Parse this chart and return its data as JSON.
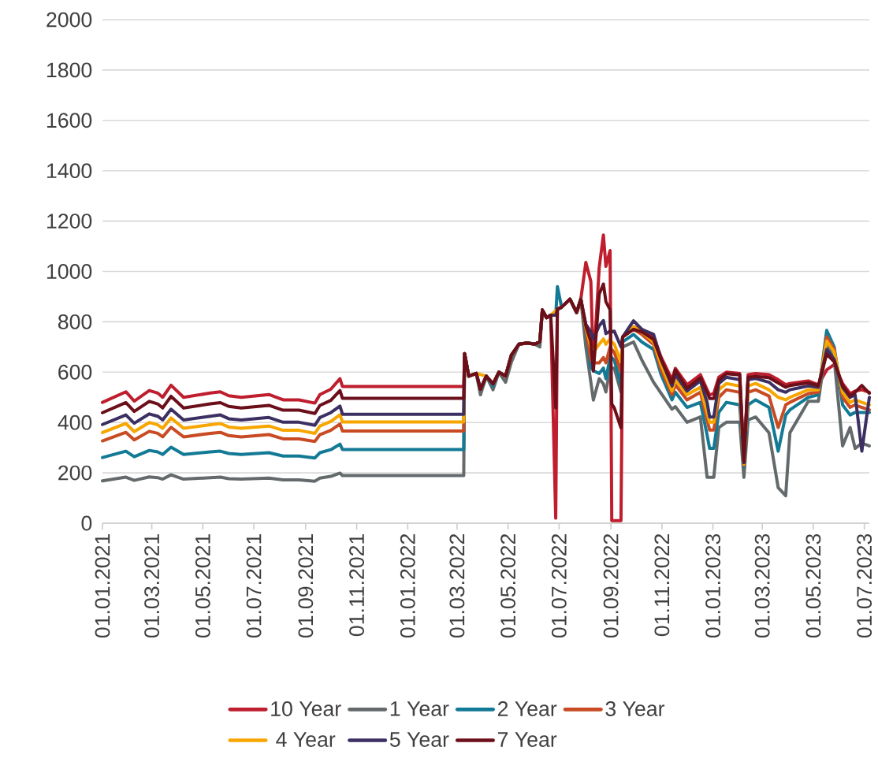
{
  "chart_data": {
    "type": "line",
    "x": [
      "2021-01-01",
      "2021-01-29",
      "2021-02-08",
      "2021-02-26",
      "2021-03-08",
      "2021-03-14",
      "2021-03-24",
      "2021-04-08",
      "2021-05-10",
      "2021-05-22",
      "2021-06-01",
      "2021-06-16",
      "2021-07-19",
      "2021-08-05",
      "2021-08-24",
      "2021-09-12",
      "2021-09-18",
      "2021-10-01",
      "2021-10-12",
      "2021-10-15",
      "2022-03-09",
      "2022-03-10",
      "2022-03-15",
      "2022-03-24",
      "2022-03-29",
      "2022-04-05",
      "2022-04-13",
      "2022-04-20",
      "2022-04-28",
      "2022-05-05",
      "2022-05-14",
      "2022-05-24",
      "2022-06-02",
      "2022-06-08",
      "2022-06-11",
      "2022-06-16",
      "2022-06-21",
      "2022-06-27",
      "2022-06-29",
      "2022-07-04",
      "2022-07-14",
      "2022-07-22",
      "2022-07-27",
      "2022-08-02",
      "2022-08-08",
      "2022-08-11",
      "2022-08-18",
      "2022-08-23",
      "2022-08-26",
      "2022-08-31",
      "2022-09-02",
      "2022-09-05",
      "2022-09-13",
      "2022-09-15",
      "2022-09-28",
      "2022-10-08",
      "2022-10-22",
      "2022-10-31",
      "2022-11-13",
      "2022-11-17",
      "2022-12-01",
      "2022-12-17",
      "2022-12-25",
      "2022-12-28",
      "2023-01-02",
      "2023-01-08",
      "2023-01-17",
      "2023-02-02",
      "2023-02-07",
      "2023-02-12",
      "2023-02-21",
      "2023-03-09",
      "2023-03-20",
      "2023-03-29",
      "2023-04-03",
      "2023-04-25",
      "2023-05-07",
      "2023-05-17",
      "2023-05-26",
      "2023-06-05",
      "2023-06-14",
      "2023-06-20",
      "2023-06-28",
      "2023-07-07"
    ],
    "series": [
      {
        "name": "10 Year",
        "color": "#be1e2d",
        "values": [
          480,
          522,
          485,
          527,
          517,
          500,
          548,
          500,
          517,
          522,
          506,
          500,
          511,
          490,
          490,
          477,
          511,
          532,
          574,
          543,
          543,
          674,
          584,
          595,
          532,
          584,
          553,
          600,
          584,
          668,
          711,
          716,
          711,
          721,
          847,
          816,
          826,
          20,
          850,
          858,
          890,
          837,
          890,
          1036,
          960,
          620,
          1016,
          1145,
          1020,
          1083,
          10,
          10,
          10,
          740,
          780,
          770,
          740,
          660,
          570,
          615,
          550,
          590,
          530,
          510,
          515,
          580,
          600,
          595,
          245,
          590,
          595,
          590,
          570,
          550,
          555,
          565,
          550,
          609,
          630,
          555,
          515,
          525,
          530,
          520
        ]
      },
      {
        "name": "1 Year",
        "color": "#646a6c",
        "values": [
          168,
          183,
          170,
          184,
          181,
          175,
          192,
          175,
          181,
          183,
          177,
          175,
          179,
          172,
          172,
          167,
          179,
          186,
          199,
          189,
          189,
          674,
          584,
          595,
          510,
          584,
          530,
          600,
          560,
          640,
          711,
          716,
          711,
          700,
          847,
          816,
          826,
          826,
          850,
          858,
          890,
          837,
          890,
          700,
          560,
          489,
          574,
          553,
          521,
          616,
          616,
          616,
          521,
          700,
          720,
          648,
          560,
          516,
          453,
          463,
          401,
          422,
          182,
          182,
          182,
          380,
          401,
          401,
          182,
          410,
          422,
          359,
          141,
          109,
          359,
          484,
          484,
          714,
          651,
          307,
          380,
          297,
          318,
          307
        ]
      },
      {
        "name": "2 Year",
        "color": "#137a96",
        "values": [
          261,
          286,
          264,
          289,
          283,
          273,
          302,
          273,
          283,
          286,
          277,
          273,
          280,
          267,
          267,
          259,
          280,
          292,
          314,
          293,
          293,
          674,
          584,
          595,
          532,
          584,
          545,
          600,
          584,
          668,
          711,
          716,
          711,
          721,
          847,
          816,
          826,
          826,
          940,
          858,
          890,
          837,
          890,
          760,
          620,
          605,
          595,
          616,
          574,
          658,
          658,
          647,
          553,
          720,
          750,
          720,
          690,
          590,
          490,
          520,
          460,
          480,
          350,
          297,
          297,
          440,
          480,
          470,
          224,
          470,
          490,
          460,
          286,
          430,
          450,
          500,
          510,
          766,
          700,
          470,
          430,
          440,
          440,
          440
        ]
      },
      {
        "name": "3 Year",
        "color": "#c84b24",
        "values": [
          327,
          361,
          331,
          365,
          357,
          343,
          381,
          343,
          357,
          361,
          348,
          343,
          352,
          335,
          335,
          325,
          352,
          369,
          394,
          366,
          366,
          674,
          584,
          595,
          532,
          584,
          553,
          600,
          584,
          668,
          711,
          716,
          711,
          721,
          847,
          816,
          826,
          826,
          850,
          858,
          890,
          837,
          890,
          770,
          650,
          637,
          637,
          658,
          637,
          700,
          690,
          679,
          600,
          740,
          770,
          750,
          710,
          610,
          510,
          550,
          490,
          520,
          410,
          370,
          370,
          500,
          530,
          520,
          230,
          520,
          530,
          505,
          380,
          470,
          480,
          515,
          520,
          740,
          690,
          500,
          460,
          470,
          460,
          450
        ]
      },
      {
        "name": "4 Year",
        "color": "#f7a600",
        "values": [
          360,
          396,
          364,
          400,
          391,
          377,
          418,
          377,
          391,
          396,
          382,
          377,
          386,
          369,
          369,
          357,
          386,
          404,
          431,
          402,
          402,
          674,
          584,
          595,
          null,
          584,
          553,
          600,
          584,
          668,
          711,
          716,
          711,
          721,
          847,
          816,
          826,
          null,
          850,
          858,
          890,
          837,
          890,
          780,
          700,
          679,
          711,
          732,
          711,
          732,
          720,
          711,
          640,
          740,
          780,
          760,
          720,
          630,
          525,
          570,
          510,
          540,
          440,
          401,
          401,
          530,
          555,
          545,
          234,
          545,
          555,
          530,
          500,
          490,
          500,
          530,
          530,
          724,
          680,
          520,
          480,
          490,
          480,
          470
        ]
      },
      {
        "name": "5 Year",
        "color": "#3c2f62",
        "values": [
          392,
          430,
          397,
          434,
          425,
          410,
          453,
          410,
          425,
          430,
          415,
          410,
          420,
          401,
          401,
          389,
          420,
          439,
          465,
          433,
          433,
          674,
          584,
          595,
          532,
          584,
          553,
          600,
          584,
          668,
          711,
          716,
          711,
          721,
          847,
          816,
          826,
          826,
          850,
          858,
          890,
          837,
          890,
          790,
          760,
          732,
          784,
          805,
          753,
          763,
          760,
          763,
          700,
          740,
          804,
          770,
          750,
          650,
          545,
          590,
          525,
          565,
          480,
          422,
          422,
          555,
          580,
          570,
          240,
          570,
          575,
          560,
          530,
          520,
          530,
          545,
          540,
          690,
          650,
          540,
          500,
          510,
          286,
          500
        ]
      },
      {
        "name": "7 Year",
        "color": "#6b0f1a",
        "values": [
          439,
          479,
          444,
          484,
          474,
          458,
          504,
          458,
          474,
          479,
          464,
          458,
          468,
          449,
          449,
          436,
          468,
          488,
          527,
          496,
          496,
          674,
          584,
          595,
          532,
          584,
          553,
          600,
          584,
          668,
          711,
          716,
          711,
          721,
          847,
          816,
          826,
          458,
          850,
          858,
          890,
          837,
          890,
          784,
          721,
          605,
          910,
          950,
          880,
          848,
          473,
          458,
          379,
          740,
          770,
          760,
          730,
          651,
          557,
          609,
          536,
          578,
          520,
          495,
          495,
          568,
          594,
          589,
          245,
          580,
          583,
          578,
          557,
          540,
          547,
          557,
          547,
          672,
          641,
          547,
          505,
          520,
          547,
          516
        ]
      }
    ],
    "xlim": [
      "2021-01-01",
      "2023-07-07"
    ],
    "xticks": [
      {
        "value": "2021-01-01",
        "label": "01.01.2021"
      },
      {
        "value": "2021-03-01",
        "label": "01.03.2021"
      },
      {
        "value": "2021-05-01",
        "label": "01.05.2021"
      },
      {
        "value": "2021-07-01",
        "label": "01.07.2021"
      },
      {
        "value": "2021-09-01",
        "label": "01.09.2021"
      },
      {
        "value": "2021-11-01",
        "label": "01.11.2021"
      },
      {
        "value": "2022-01-01",
        "label": "01.01.2022"
      },
      {
        "value": "2022-03-01",
        "label": "01.03.2022"
      },
      {
        "value": "2022-05-01",
        "label": "01.05.2022"
      },
      {
        "value": "2022-07-01",
        "label": "01.07.2022"
      },
      {
        "value": "2022-09-01",
        "label": "01.09.2022"
      },
      {
        "value": "2022-11-01",
        "label": "01.11.2022"
      },
      {
        "value": "2023-01-01",
        "label": "01.01.2023"
      },
      {
        "value": "2023-03-01",
        "label": "01.03.2023"
      },
      {
        "value": "2023-05-01",
        "label": "01.05.2023"
      },
      {
        "value": "2023-07-01",
        "label": "01.07.2023"
      }
    ],
    "ylim": [
      0,
      2000
    ],
    "yticks": [
      0,
      200,
      400,
      600,
      800,
      1000,
      1200,
      1400,
      1600,
      1800,
      2000
    ],
    "grid": "y",
    "legend": "bottom"
  }
}
